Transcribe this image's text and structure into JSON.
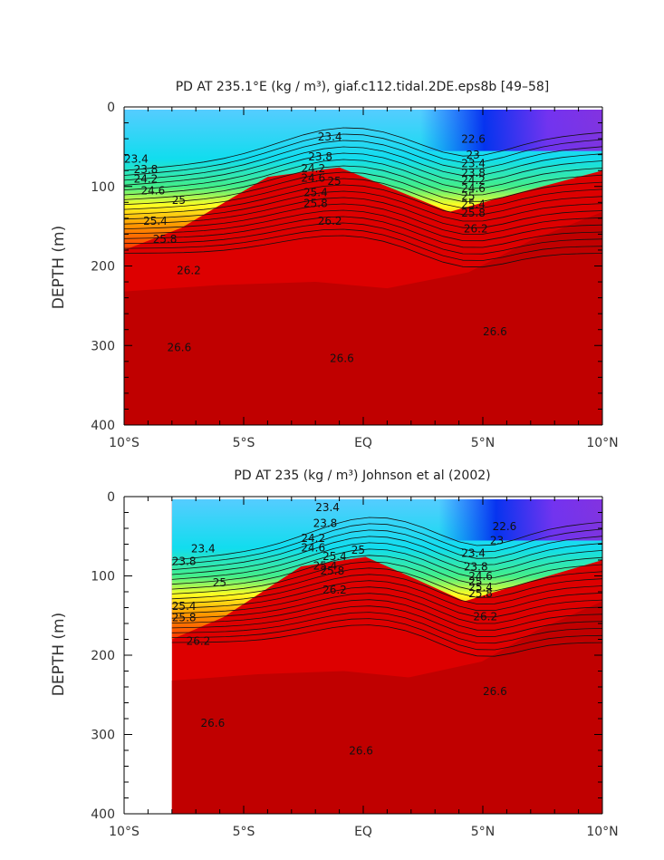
{
  "chart_data": [
    {
      "type": "heatmap",
      "title": "PD AT 235.1°E (kg / m³), giaf.c112.tidal.2DE.eps8b [49–58]",
      "ylabel": "DEPTH (m)",
      "xlabel": "",
      "xlim": [
        -10,
        10
      ],
      "ylim": [
        0,
        400
      ],
      "y_reversed": true,
      "x_ticks": [
        -10,
        -5,
        0,
        5,
        10
      ],
      "x_tick_labels": [
        "10°S",
        "5°S",
        "EQ",
        "5°N",
        "10°N"
      ],
      "y_ticks": [
        0,
        100,
        200,
        300,
        400
      ],
      "y_tick_labels": [
        "0",
        "100",
        "200",
        "300",
        "400"
      ],
      "data_start_x": -10,
      "contour_labels": [
        {
          "text": "23.4",
          "x": -10.0,
          "y": 70
        },
        {
          "text": "23.8",
          "x": -9.6,
          "y": 83
        },
        {
          "text": "24.2",
          "x": -9.6,
          "y": 95
        },
        {
          "text": "24.6",
          "x": -9.3,
          "y": 110
        },
        {
          "text": "25",
          "x": -8.0,
          "y": 122
        },
        {
          "text": "25.4",
          "x": -9.2,
          "y": 148
        },
        {
          "text": "25.8",
          "x": -8.8,
          "y": 171
        },
        {
          "text": "26.2",
          "x": -7.8,
          "y": 210
        },
        {
          "text": "26.6",
          "x": -8.2,
          "y": 307
        },
        {
          "text": "23.4",
          "x": -1.9,
          "y": 42
        },
        {
          "text": "23.8",
          "x": -2.3,
          "y": 67
        },
        {
          "text": "24.2",
          "x": -2.6,
          "y": 82
        },
        {
          "text": "24.6",
          "x": -2.6,
          "y": 94
        },
        {
          "text": "25",
          "x": -1.5,
          "y": 98
        },
        {
          "text": "25.4",
          "x": -2.5,
          "y": 112
        },
        {
          "text": "25.8",
          "x": -2.5,
          "y": 126
        },
        {
          "text": "26.2",
          "x": -1.9,
          "y": 148
        },
        {
          "text": "26.6",
          "x": -1.4,
          "y": 321
        },
        {
          "text": "22.6",
          "x": 4.1,
          "y": 45
        },
        {
          "text": "23",
          "x": 4.3,
          "y": 65
        },
        {
          "text": "23.4",
          "x": 4.1,
          "y": 76
        },
        {
          "text": "23.8",
          "x": 4.1,
          "y": 88
        },
        {
          "text": "24.2",
          "x": 4.1,
          "y": 97
        },
        {
          "text": "24.6",
          "x": 4.1,
          "y": 107
        },
        {
          "text": "25",
          "x": 4.1,
          "y": 117
        },
        {
          "text": "25.4",
          "x": 4.1,
          "y": 127
        },
        {
          "text": "25.8",
          "x": 4.1,
          "y": 138
        },
        {
          "text": "26.2",
          "x": 4.2,
          "y": 158
        },
        {
          "text": "26.6",
          "x": 5.0,
          "y": 287
        }
      ]
    },
    {
      "type": "heatmap",
      "title": "PD AT 235 (kg / m³) Johnson et al (2002)",
      "ylabel": "DEPTH (m)",
      "xlabel": "",
      "xlim": [
        -10,
        10
      ],
      "ylim": [
        0,
        400
      ],
      "y_reversed": true,
      "x_ticks": [
        -10,
        -5,
        0,
        5,
        10
      ],
      "x_tick_labels": [
        "10°S",
        "5°S",
        "EQ",
        "5°N",
        "10°N"
      ],
      "y_ticks": [
        0,
        100,
        200,
        300,
        400
      ],
      "y_tick_labels": [
        "0",
        "100",
        "200",
        "300",
        "400"
      ],
      "data_start_x": -8,
      "contour_labels": [
        {
          "text": "23.4",
          "x": -7.2,
          "y": 70
        },
        {
          "text": "23.8",
          "x": -8.0,
          "y": 86
        },
        {
          "text": "25",
          "x": -6.3,
          "y": 113
        },
        {
          "text": "25.4",
          "x": -8.0,
          "y": 143
        },
        {
          "text": "25.8",
          "x": -8.0,
          "y": 157
        },
        {
          "text": "26.2",
          "x": -7.4,
          "y": 187
        },
        {
          "text": "26.6",
          "x": -6.8,
          "y": 290
        },
        {
          "text": "23.4",
          "x": -2.0,
          "y": 18
        },
        {
          "text": "23.8",
          "x": -2.1,
          "y": 38
        },
        {
          "text": "24.2",
          "x": -2.6,
          "y": 57
        },
        {
          "text": "24.6",
          "x": -2.6,
          "y": 69
        },
        {
          "text": "25",
          "x": -0.5,
          "y": 72
        },
        {
          "text": "25.4",
          "x": -1.7,
          "y": 80
        },
        {
          "text": "25.4",
          "x": -2.1,
          "y": 92
        },
        {
          "text": "25.8",
          "x": -1.8,
          "y": 98
        },
        {
          "text": "26.2",
          "x": -1.7,
          "y": 122
        },
        {
          "text": "26.6",
          "x": -0.6,
          "y": 325
        },
        {
          "text": "22.6",
          "x": 5.4,
          "y": 42
        },
        {
          "text": "23",
          "x": 5.3,
          "y": 60
        },
        {
          "text": "23.4",
          "x": 4.1,
          "y": 76
        },
        {
          "text": "23.8",
          "x": 4.2,
          "y": 93
        },
        {
          "text": "24.6",
          "x": 4.4,
          "y": 105
        },
        {
          "text": "25",
          "x": 4.4,
          "y": 112
        },
        {
          "text": "25.4",
          "x": 4.4,
          "y": 119
        },
        {
          "text": "25.8",
          "x": 4.4,
          "y": 127
        },
        {
          "text": "26.2",
          "x": 4.6,
          "y": 156
        },
        {
          "text": "26.6",
          "x": 5.0,
          "y": 250
        }
      ]
    }
  ]
}
